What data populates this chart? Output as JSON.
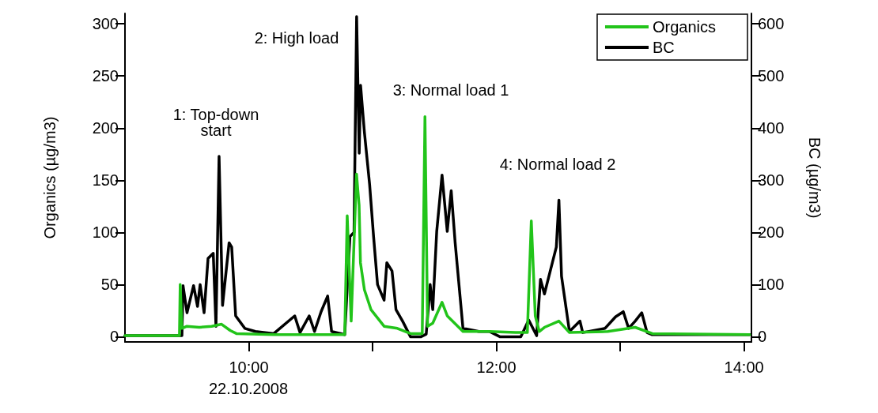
{
  "chart_data": {
    "type": "line",
    "xlabel": null,
    "ylabel": "Organics (µg/m3)",
    "y2label": "BC (µg/m3)",
    "annotations": [
      "1: Top-down\nstart",
      "2: High load",
      "3: Normal load 1",
      "4: Normal load 2",
      "22.10.2008"
    ],
    "xlim": [
      9.0,
      14.06
    ],
    "xticks": [
      {
        "value": 10,
        "label": "10:00"
      },
      {
        "value": 11,
        "label": null
      },
      {
        "value": 12,
        "label": "12:00"
      },
      {
        "value": 13,
        "label": null
      },
      {
        "value": 14,
        "label": "14:00"
      }
    ],
    "ylim": [
      -5,
      310
    ],
    "yticks": [
      0,
      50,
      100,
      150,
      200,
      250,
      300
    ],
    "y2lim": [
      -10,
      620
    ],
    "y2ticks": [
      0,
      100,
      200,
      300,
      400,
      500,
      600
    ],
    "legend": "top right",
    "grid": false,
    "marker": "none",
    "line_style": "solid",
    "series": [
      {
        "name": "Organics",
        "color": "#22c41a",
        "x": [
          9.0,
          9.44,
          9.446,
          9.46,
          9.5,
          9.6,
          9.7,
          9.78,
          9.85,
          9.9,
          10.2,
          10.6,
          10.775,
          10.795,
          10.827,
          10.87,
          10.891,
          10.902,
          10.934,
          10.987,
          11.093,
          11.2,
          11.306,
          11.401,
          11.423,
          11.444,
          11.486,
          11.561,
          11.603,
          11.73,
          11.943,
          12.155,
          12.25,
          12.282,
          12.314,
          12.346,
          12.388,
          12.505,
          12.59,
          12.9,
          13.121,
          13.259,
          14.045
        ],
        "values": [
          1,
          1,
          50,
          8,
          10,
          9,
          10,
          12,
          6,
          3,
          2,
          2,
          2,
          116,
          15,
          156,
          126,
          71,
          45,
          26,
          10,
          8,
          3,
          3,
          211,
          10,
          13,
          33,
          20,
          5,
          5,
          4,
          4,
          111,
          20,
          5,
          9,
          15,
          4,
          5,
          9,
          3,
          2
        ]
      },
      {
        "name": "BC",
        "color": "#000000",
        "axis": "y2",
        "x": [
          9.0,
          9.46,
          9.469,
          9.501,
          9.554,
          9.586,
          9.607,
          9.639,
          9.671,
          9.713,
          9.735,
          9.76,
          9.788,
          9.841,
          9.862,
          9.894,
          9.968,
          10.053,
          10.202,
          10.371,
          10.414,
          10.488,
          10.531,
          10.584,
          10.637,
          10.669,
          10.775,
          10.817,
          10.85,
          10.871,
          10.892,
          10.903,
          10.934,
          10.976,
          11.008,
          11.04,
          11.093,
          11.115,
          11.157,
          11.189,
          11.242,
          11.306,
          11.391,
          11.433,
          11.465,
          11.486,
          11.518,
          11.561,
          11.603,
          11.635,
          11.667,
          11.73,
          11.858,
          11.943,
          12.028,
          12.197,
          12.261,
          12.325,
          12.356,
          12.388,
          12.452,
          12.484,
          12.505,
          12.526,
          12.59,
          12.675,
          12.697,
          12.877,
          12.962,
          13.025,
          13.068,
          13.121,
          13.174,
          13.217,
          13.259,
          14.045
        ],
        "values": [
          2,
          2,
          98,
          46,
          98,
          58,
          100,
          46,
          150,
          160,
          20,
          346,
          60,
          180,
          172,
          40,
          16,
          10,
          6,
          40,
          8,
          40,
          10,
          48,
          78,
          10,
          4,
          192,
          200,
          614,
          352,
          482,
          392,
          292,
          192,
          100,
          70,
          142,
          126,
          52,
          30,
          0,
          0,
          5,
          100,
          52,
          202,
          310,
          202,
          280,
          180,
          16,
          10,
          10,
          0,
          0,
          32,
          2,
          110,
          82,
          142,
          172,
          262,
          116,
          10,
          30,
          8,
          16,
          38,
          48,
          16,
          30,
          46,
          8,
          4,
          4
        ]
      }
    ]
  }
}
